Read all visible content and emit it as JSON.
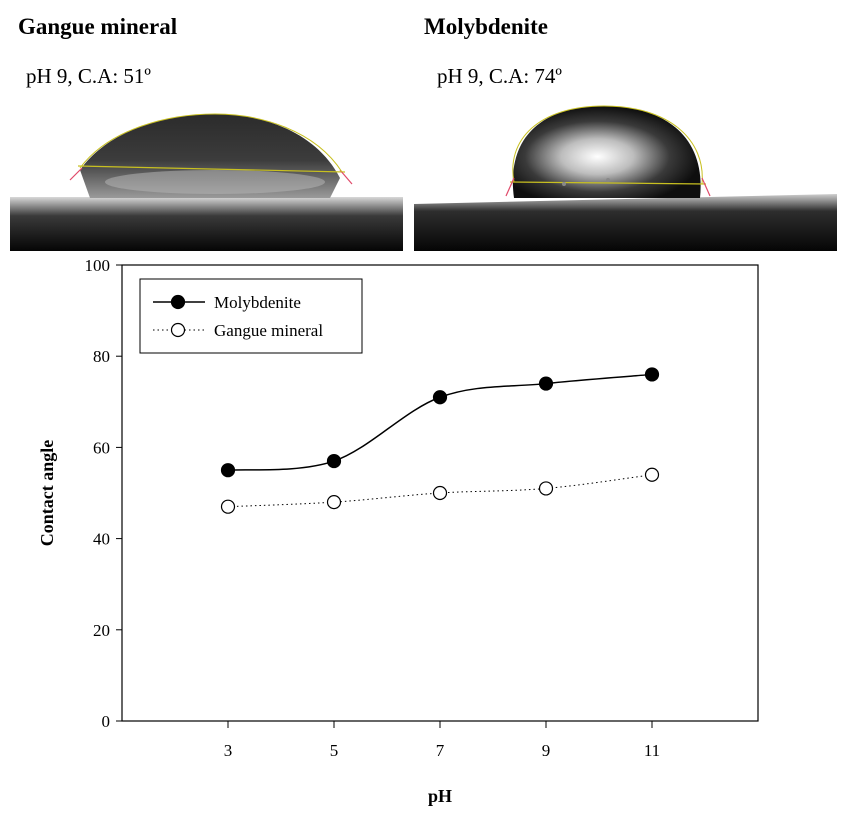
{
  "panels": [
    {
      "title": "Gangue mineral",
      "caption": "pH 9, C.A: 51º"
    },
    {
      "title": "Molybdenite",
      "caption": "pH 9, C.A: 74º"
    }
  ],
  "chart_data": {
    "type": "line",
    "title": "",
    "xlabel": "pH",
    "ylabel": "Contact angle",
    "x": [
      3,
      5,
      7,
      9,
      11
    ],
    "xticks": [
      "3",
      "5",
      "7",
      "9",
      "11"
    ],
    "yticks": [
      "0",
      "20",
      "40",
      "60",
      "80",
      "100"
    ],
    "xlim": [
      1,
      13
    ],
    "ylim": [
      0,
      100
    ],
    "grid": false,
    "legend_position": "top-left",
    "series": [
      {
        "name": "Molybdenite",
        "values": [
          55,
          57,
          71,
          74,
          76
        ],
        "marker": "filled-circle",
        "line": "solid",
        "color": "#000000"
      },
      {
        "name": "Gangue mineral",
        "values": [
          47,
          48,
          50,
          51,
          54
        ],
        "marker": "open-circle",
        "line": "dotted",
        "color": "#000000"
      }
    ]
  }
}
